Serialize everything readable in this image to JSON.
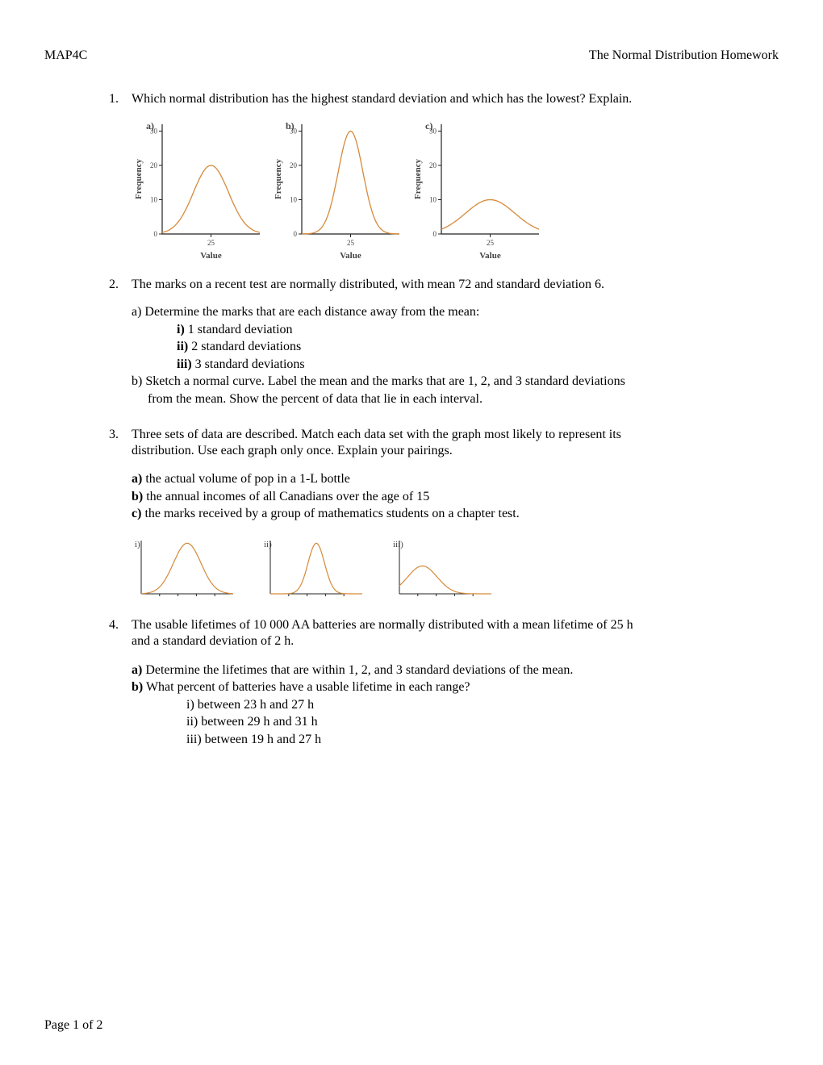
{
  "header": {
    "left": "MAP4C",
    "right": "The Normal Distribution Homework"
  },
  "q1": {
    "num": "1.",
    "text": "Which normal distribution has the highest standard deviation and which has the lowest? Explain.",
    "charts": {
      "type": "line",
      "curve_color": "#d68a3a",
      "axis_color": "#222222",
      "text_color": "#444444",
      "label_fontsize": 11,
      "axis_fontsize": 9,
      "ylabel": "Frequency",
      "xlabel": "Value",
      "xtick": "25",
      "yticks": [
        "0",
        "10",
        "20",
        "30"
      ],
      "panels": [
        {
          "label": "a)",
          "peak": 20,
          "spread": 1.0
        },
        {
          "label": "b)",
          "peak": 30,
          "spread": 0.7
        },
        {
          "label": "c)",
          "peak": 10,
          "spread": 1.4
        }
      ]
    }
  },
  "q2": {
    "num": "2.",
    "text": "The marks on a recent test are normally distributed, with mean 72 and standard deviation 6.",
    "a_label": "a) Determine the marks that are each distance away from the mean:",
    "items": [
      {
        "b": "i)",
        "t": " 1 standard deviation"
      },
      {
        "b": "ii)",
        "t": " 2 standard deviations"
      },
      {
        "b": "iii)",
        "t": " 3 standard deviations"
      }
    ],
    "b_line1": "b) Sketch a normal curve. Label the mean and the marks that are 1, 2, and 3 standard deviations",
    "b_line2": "from the mean. Show the percent of data that lie in each interval."
  },
  "q3": {
    "num": "3.",
    "line1": "Three sets of data are described. Match each data set with the graph most likely to represent its",
    "line2": "distribution. Use each graph only once. Explain your pairings.",
    "items": [
      {
        "b": "a)",
        "t": " the actual volume of pop in a 1-L bottle"
      },
      {
        "b": "b)",
        "t": " the annual incomes of all Canadians over the age of 15"
      },
      {
        "b": "c)",
        "t": " the marks received by a group of mathematics students on a chapter test."
      }
    ],
    "charts": {
      "curve_color": "#d68a3a",
      "axis_color": "#222222",
      "text_color": "#444444",
      "panels": [
        {
          "label": "i)",
          "shape": "normal-center"
        },
        {
          "label": "ii)",
          "shape": "normal-narrow"
        },
        {
          "label": "iii)",
          "shape": "skew-right"
        }
      ]
    }
  },
  "q4": {
    "num": "4.",
    "line1": "The usable lifetimes of 10 000 AA batteries are normally distributed with a mean lifetime of 25 h",
    "line2": "and a standard deviation of 2 h.",
    "a": {
      "b": "a)",
      "t": "  Determine the lifetimes that are within 1, 2, and 3 standard deviations of the mean."
    },
    "b": {
      "b": "b)",
      "t": "  What percent of batteries have a usable lifetime in each range?"
    },
    "items": [
      "i)  between 23 h and 27 h",
      "ii) between 29 h and 31 h",
      "iii) between 19 h and 27 h"
    ]
  },
  "footer": "Page 1 of 2"
}
